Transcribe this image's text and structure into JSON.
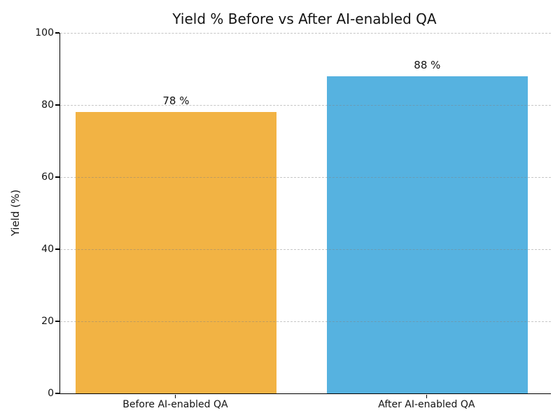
{
  "chart_data": {
    "type": "bar",
    "title": "Yield % Before vs After AI-enabled QA",
    "xlabel": "",
    "ylabel": "Yield (%)",
    "categories": [
      "Before AI-enabled QA",
      "After AI-enabled QA"
    ],
    "values": [
      78,
      88
    ],
    "bar_labels": [
      "78 %",
      "88 %"
    ],
    "bar_colors": [
      "#F2B344",
      "#56B2E0"
    ],
    "ylim": [
      0,
      100
    ],
    "yticks": [
      0,
      20,
      40,
      60,
      80,
      100
    ],
    "grid": "horizontal-dashed",
    "grid_on_top_of_bars": true,
    "legend_position": "none"
  },
  "colors": {
    "background": "#ffffff",
    "axis_spine": "#000000",
    "gridline": "#c9c9c9",
    "text": "#141414",
    "bar_before": "#F2B344",
    "bar_after": "#56B2E0"
  }
}
